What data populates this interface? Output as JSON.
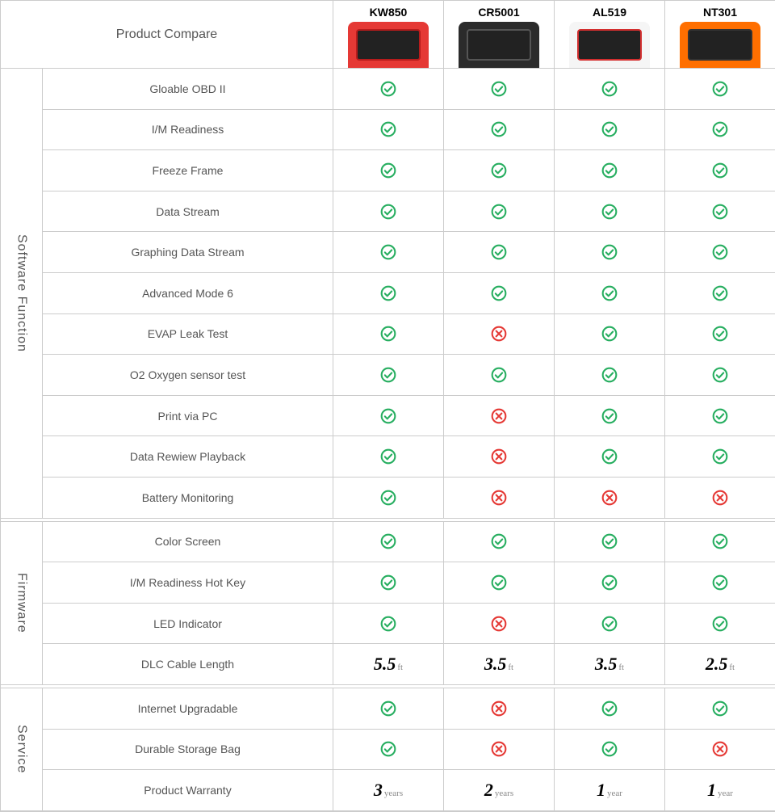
{
  "header": {
    "title": "Product Compare"
  },
  "products": [
    {
      "name": "KW850",
      "device_color": "#e53935",
      "screen_border": "#b71c1c"
    },
    {
      "name": "CR5001",
      "device_color": "#2b2b2b",
      "screen_border": "#555555"
    },
    {
      "name": "AL519",
      "device_color": "#f5f5f5",
      "screen_border": "#d32f2f"
    },
    {
      "name": "NT301",
      "device_color": "#ff6f00",
      "screen_border": "#333333"
    }
  ],
  "icon_colors": {
    "check": "#27ae60",
    "cross": "#e53935"
  },
  "sections": [
    {
      "name": "Software Function",
      "rows": [
        {
          "label": "Gloable OBD II",
          "v": [
            "check",
            "check",
            "check",
            "check"
          ]
        },
        {
          "label": "I/M Readiness",
          "v": [
            "check",
            "check",
            "check",
            "check"
          ]
        },
        {
          "label": "Freeze Frame",
          "v": [
            "check",
            "check",
            "check",
            "check"
          ]
        },
        {
          "label": "Data Stream",
          "v": [
            "check",
            "check",
            "check",
            "check"
          ]
        },
        {
          "label": "Graphing Data Stream",
          "v": [
            "check",
            "check",
            "check",
            "check"
          ]
        },
        {
          "label": "Advanced Mode 6",
          "v": [
            "check",
            "check",
            "check",
            "check"
          ]
        },
        {
          "label": "EVAP Leak Test",
          "v": [
            "check",
            "cross",
            "check",
            "check"
          ]
        },
        {
          "label": "O2 Oxygen sensor test",
          "v": [
            "check",
            "check",
            "check",
            "check"
          ]
        },
        {
          "label": "Print via PC",
          "v": [
            "check",
            "cross",
            "check",
            "check"
          ]
        },
        {
          "label": "Data Rewiew Playback",
          "v": [
            "check",
            "cross",
            "check",
            "check"
          ]
        },
        {
          "label": "Battery Monitoring",
          "v": [
            "check",
            "cross",
            "cross",
            "cross"
          ]
        }
      ]
    },
    {
      "name": "Firmware",
      "rows": [
        {
          "label": "Color Screen",
          "v": [
            "check",
            "check",
            "check",
            "check"
          ]
        },
        {
          "label": "I/M Readiness Hot Key",
          "v": [
            "check",
            "check",
            "check",
            "check"
          ]
        },
        {
          "label": "LED Indicator",
          "v": [
            "check",
            "cross",
            "check",
            "check"
          ]
        },
        {
          "label": "DLC Cable Length",
          "v": [
            {
              "big": "5.5",
              "unit": "ft"
            },
            {
              "big": "3.5",
              "unit": "ft"
            },
            {
              "big": "3.5",
              "unit": "ft"
            },
            {
              "big": "2.5",
              "unit": "ft"
            }
          ]
        }
      ]
    },
    {
      "name": "Service",
      "rows": [
        {
          "label": "Internet Upgradable",
          "v": [
            "check",
            "cross",
            "check",
            "check"
          ]
        },
        {
          "label": "Durable Storage Bag",
          "v": [
            "check",
            "cross",
            "check",
            "cross"
          ]
        },
        {
          "label": "Product Warranty",
          "v": [
            {
              "big": "3",
              "unit": "years"
            },
            {
              "big": "2",
              "unit": "years"
            },
            {
              "big": "1",
              "unit": "year"
            },
            {
              "big": "1",
              "unit": "year"
            }
          ]
        }
      ]
    }
  ]
}
